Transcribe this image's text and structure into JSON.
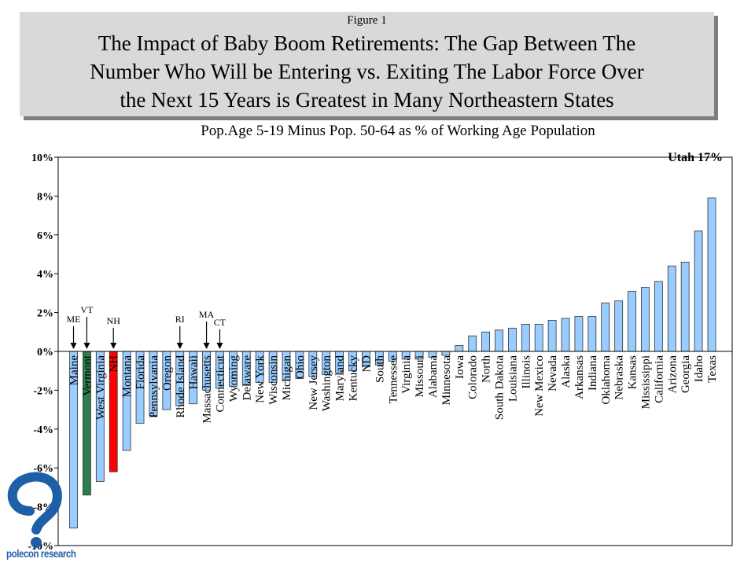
{
  "figure_label": "Figure 1",
  "title_lines": [
    "The Impact of Baby Boom Retirements: The Gap Between The",
    "Number Who Will be Entering vs. Exiting The Labor Force Over",
    "the Next 15 Years is Greatest in Many Northeastern States"
  ],
  "subtitle": "Pop.Age 5-19 Minus Pop. 50-64 as % of Working Age Population",
  "logo_text": "polecon research",
  "chart_data": {
    "type": "bar",
    "title": "Pop.Age 5-19 Minus Pop. 50-64 as % of Working Age Population",
    "xlabel": "",
    "ylabel": "",
    "ylim": [
      -10,
      10
    ],
    "y_ticks": [
      "-10%",
      "-8%",
      "-6%",
      "-4%",
      "-2%",
      "0%",
      "2%",
      "4%",
      "6%",
      "8%",
      "10%"
    ],
    "y_tick_values": [
      -10,
      -8,
      -6,
      -4,
      -2,
      0,
      2,
      4,
      6,
      8,
      10
    ],
    "grid": false,
    "offscale_note": "Utah 17%",
    "colors": {
      "default": "#99ccff",
      "highlight_green": "#2e7d4f",
      "highlight_red": "#ff0000",
      "outline": "#333333"
    },
    "categories": [
      "Maine",
      "Vermont",
      "West Virginia",
      "NH",
      "Montana",
      "Florida",
      "Pennsylvania",
      "Oregon",
      "Rhode Island",
      "Hawaii",
      "Massachusetts",
      "Connecticut",
      "Wyoming",
      "Delaware",
      "New York",
      "Wisconsin",
      "Michigan",
      "Ohio",
      "New Jersey",
      "Washington",
      "Maryland",
      "Kentucky",
      "ND",
      "South",
      "Tennessee",
      "Virginia",
      "Missouri",
      "Alabama",
      "Minnesota",
      "Iowa",
      "Colorado",
      "North",
      "South Dakota",
      "Louisiana",
      "Illinois",
      "New Mexico",
      "Nevada",
      "Alaska",
      "Arkansas",
      "Indiana",
      "Oklahoma",
      "Nebraska",
      "Kansas",
      "Mississippi",
      "California",
      "Arizona",
      "Georgia",
      "Idaho",
      "Texas"
    ],
    "tick_labels": [
      "Maine",
      "Vermont",
      "West Virginia",
      "NH",
      "Montana",
      "Florida",
      "Pennsylvania",
      "Oregon",
      "Rhode Island",
      "Hawaii",
      "Massachusetts",
      "Connecticut",
      "Wyoming",
      "Delaware",
      "New York",
      "Wisconsin",
      "Michigan",
      "Ohio",
      "New Jersey",
      "Washington",
      "Maryland",
      "Kentucky",
      "ND",
      "South",
      "Tennessee",
      "Virginia",
      "Missouri",
      "Alabama",
      "Minnesota",
      "Iowa",
      "Colorado",
      "North",
      "South Dakota",
      "Louisiana",
      "Illinois",
      "New Mexico",
      "Nevada",
      "Alaska",
      "Arkansas",
      "Indiana",
      "Oklahoma",
      "Nebraska",
      "Kansas",
      "Mississippi",
      "California",
      "Arizona",
      "Georgia",
      "Idaho",
      "Texas"
    ],
    "values": [
      -9.1,
      -7.4,
      -6.7,
      -6.2,
      -5.1,
      -3.7,
      -3.3,
      -3.0,
      -2.8,
      -2.7,
      -2.0,
      -1.9,
      -1.8,
      -1.7,
      -1.6,
      -1.6,
      -1.5,
      -1.4,
      -1.3,
      -1.2,
      -1.1,
      -1.0,
      -0.8,
      -0.7,
      -0.5,
      -0.4,
      -0.4,
      -0.3,
      -0.2,
      0.3,
      0.8,
      1.0,
      1.1,
      1.2,
      1.4,
      1.4,
      1.6,
      1.7,
      1.8,
      1.8,
      2.5,
      2.6,
      3.1,
      3.3,
      3.6,
      4.4,
      4.6,
      6.2,
      7.9
    ],
    "highlight": {
      "Vermont": "green",
      "NH": "red"
    },
    "annotations": [
      {
        "label": "ME",
        "category": "Maine"
      },
      {
        "label": "VT",
        "category": "Vermont"
      },
      {
        "label": "NH",
        "category": "NH"
      },
      {
        "label": "RI",
        "category": "Rhode Island"
      },
      {
        "label": "MA",
        "category": "Massachusetts"
      },
      {
        "label": "CT",
        "category": "Connecticut"
      }
    ]
  }
}
